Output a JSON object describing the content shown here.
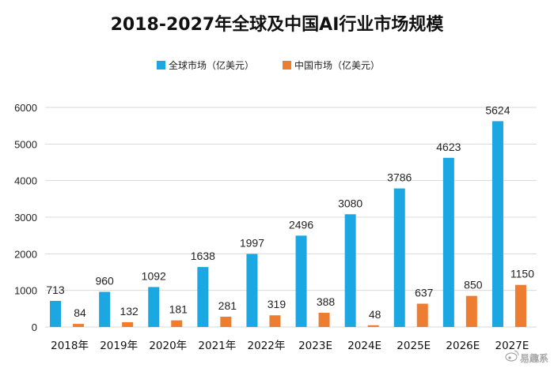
{
  "chart_data": {
    "type": "bar",
    "title": "2018-2027年全球及中国AI行业市场规模",
    "categories": [
      "2018年",
      "2019年",
      "2020年",
      "2021年",
      "2022年",
      "2023E",
      "2024E",
      "2025E",
      "2026E",
      "2027E"
    ],
    "series": [
      {
        "name": "全球市场（亿美元）",
        "color": "#1aa7e2",
        "values": [
          713,
          960,
          1092,
          1638,
          1997,
          2496,
          3080,
          3786,
          4623,
          5624
        ]
      },
      {
        "name": "中国市场（亿美元）",
        "color": "#ed7d31",
        "values": [
          84,
          132,
          181,
          281,
          319,
          388,
          48,
          637,
          850,
          1150
        ]
      }
    ],
    "ylim": [
      0,
      6000
    ],
    "yticks": [
      0,
      1000,
      2000,
      3000,
      4000,
      5000,
      6000
    ],
    "grid": true,
    "legend_position": "top"
  },
  "watermark": {
    "text": "易趣系"
  }
}
